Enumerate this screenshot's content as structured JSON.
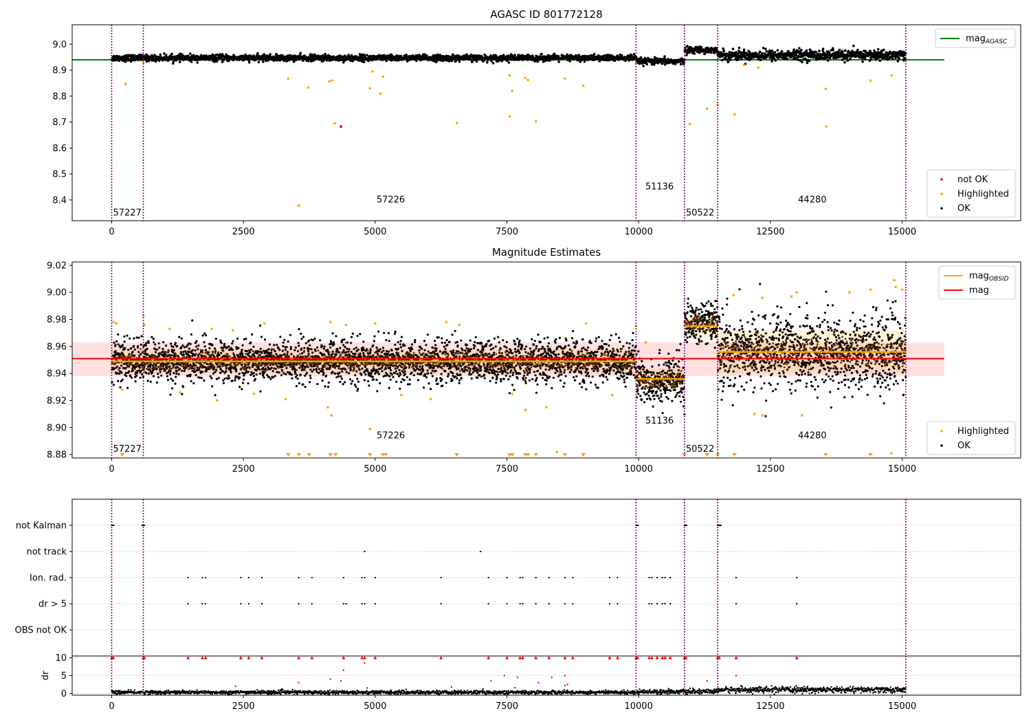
{
  "chart_data": [
    {
      "type": "scatter",
      "title": "AGASC ID 801772128",
      "xlim": [
        -750,
        17250
      ],
      "ylim": [
        8.32,
        9.075
      ],
      "xticks": [
        0,
        2500,
        5000,
        7500,
        10000,
        12500,
        15000
      ],
      "yticks": [
        8.4,
        8.5,
        8.6,
        8.7,
        8.8,
        8.9,
        9.0
      ],
      "ytick_labels": [
        "8.4",
        "8.5",
        "8.6",
        "8.7",
        "8.8",
        "8.9",
        "9.0"
      ],
      "obs_boundaries": [
        0,
        600,
        9950,
        10870,
        11500,
        15070
      ],
      "obsid_labels": [
        {
          "text": "57227",
          "x": 0,
          "y": 8.34
        },
        {
          "text": "57226",
          "x": 5000,
          "y": 8.39
        },
        {
          "text": "51136",
          "x": 10100,
          "y": 8.44
        },
        {
          "text": "50522",
          "x": 10870,
          "y": 8.34
        },
        {
          "text": "44280",
          "x": 13000,
          "y": 8.39
        }
      ],
      "mag_agasc": 8.94,
      "mag_agasc_xrange": [
        -750,
        15800
      ],
      "segments": [
        {
          "x0": 0,
          "x1": 9950,
          "center": 8.947,
          "spread": 0.006
        },
        {
          "x0": 9950,
          "x1": 10870,
          "center": 8.934,
          "spread": 0.006
        },
        {
          "x0": 10870,
          "x1": 11500,
          "center": 8.978,
          "spread": 0.006
        },
        {
          "x0": 11500,
          "x1": 15070,
          "center": 8.958,
          "spread": 0.01
        }
      ],
      "highlighted_points": [
        [
          260,
          8.847
        ],
        [
          3350,
          8.868
        ],
        [
          3730,
          8.833
        ],
        [
          4130,
          8.857
        ],
        [
          4180,
          8.86
        ],
        [
          4230,
          8.695
        ],
        [
          3550,
          8.378
        ],
        [
          4900,
          8.83
        ],
        [
          5100,
          8.81
        ],
        [
          5150,
          8.875
        ],
        [
          4950,
          8.895
        ],
        [
          6550,
          8.697
        ],
        [
          7550,
          8.88
        ],
        [
          7600,
          8.82
        ],
        [
          7550,
          8.722
        ],
        [
          7850,
          8.87
        ],
        [
          7900,
          8.862
        ],
        [
          8050,
          8.702
        ],
        [
          8600,
          8.868
        ],
        [
          8950,
          8.84
        ],
        [
          10970,
          8.693
        ],
        [
          11300,
          8.752
        ],
        [
          11500,
          8.767
        ],
        [
          11820,
          8.73
        ],
        [
          13550,
          8.828
        ],
        [
          13560,
          8.683
        ],
        [
          14400,
          8.86
        ],
        [
          14800,
          8.88
        ],
        [
          12270,
          8.91
        ],
        [
          12000,
          8.92
        ],
        [
          600,
          8.928
        ],
        [
          9950,
          8.925
        ]
      ],
      "not_ok_points": [
        [
          4350,
          8.683
        ]
      ],
      "legend_top": [
        {
          "label": "mag",
          "sub": "AGASC",
          "color": "#008000"
        }
      ],
      "legend_bottom": [
        {
          "label": "not OK",
          "color": "#ff0000"
        },
        {
          "label": "Highlighted",
          "color": "#ffa500"
        },
        {
          "label": "OK",
          "color": "#000000"
        }
      ]
    },
    {
      "type": "scatter",
      "title": "Magnitude Estimates",
      "xlim": [
        -750,
        17250
      ],
      "ylim": [
        8.8775,
        9.0225
      ],
      "xticks": [
        0,
        2500,
        5000,
        7500,
        10000,
        12500,
        15000
      ],
      "yticks": [
        8.88,
        8.9,
        8.92,
        8.94,
        8.96,
        8.98,
        9.0,
        9.02
      ],
      "ytick_labels": [
        "8.88",
        "8.90",
        "8.92",
        "8.94",
        "8.96",
        "8.98",
        "9.00",
        "9.02"
      ],
      "obs_boundaries": [
        0,
        600,
        9950,
        10870,
        11500,
        15070
      ],
      "obsid_labels": [
        {
          "text": "57227",
          "x": 0,
          "y": 8.882
        },
        {
          "text": "57226",
          "x": 5000,
          "y": 8.892
        },
        {
          "text": "51136",
          "x": 10100,
          "y": 8.903
        },
        {
          "text": "50522",
          "x": 10870,
          "y": 8.882
        },
        {
          "text": "44280",
          "x": 13000,
          "y": 8.892
        }
      ],
      "mag": 8.951,
      "mag_band": [
        8.938,
        8.963
      ],
      "mag_xrange": [
        -750,
        15800
      ],
      "mag_obsid": [
        {
          "x0": 0,
          "x1": 9950,
          "value": 8.949,
          "band": [
            8.94,
            8.958
          ]
        },
        {
          "x0": 9950,
          "x1": 10870,
          "value": 8.936,
          "band": [
            8.928,
            8.944
          ]
        },
        {
          "x0": 10870,
          "x1": 11500,
          "value": 8.975,
          "band": [
            8.966,
            8.984
          ]
        },
        {
          "x0": 11500,
          "x1": 15070,
          "value": 8.956,
          "band": [
            8.94,
            8.972
          ]
        }
      ],
      "segments": [
        {
          "x0": 0,
          "x1": 9950,
          "center": 8.949,
          "spread": 0.008
        },
        {
          "x0": 9950,
          "x1": 10870,
          "center": 8.935,
          "spread": 0.009
        },
        {
          "x0": 10870,
          "x1": 11500,
          "center": 8.977,
          "spread": 0.008
        },
        {
          "x0": 11500,
          "x1": 15070,
          "center": 8.956,
          "spread": 0.014
        }
      ],
      "highlighted_points": [
        [
          40,
          8.978
        ],
        [
          90,
          8.977
        ],
        [
          600,
          8.983
        ],
        [
          620,
          8.976
        ],
        [
          1100,
          8.973
        ],
        [
          1900,
          8.973
        ],
        [
          2300,
          8.972
        ],
        [
          2900,
          8.977
        ],
        [
          4150,
          8.978
        ],
        [
          4450,
          8.976
        ],
        [
          5000,
          8.977
        ],
        [
          6350,
          8.978
        ],
        [
          6600,
          8.976
        ],
        [
          9000,
          8.977
        ],
        [
          9950,
          8.975
        ],
        [
          10130,
          8.963
        ],
        [
          10870,
          8.995
        ],
        [
          11800,
          8.998
        ],
        [
          12350,
          8.996
        ],
        [
          12900,
          8.997
        ],
        [
          13000,
          9.0
        ],
        [
          14000,
          9.0
        ],
        [
          14400,
          9.002
        ],
        [
          14850,
          9.009
        ],
        [
          14880,
          9.004
        ],
        [
          15000,
          9.002
        ],
        [
          200,
          8.928
        ],
        [
          1300,
          8.926
        ],
        [
          2000,
          8.92
        ],
        [
          3300,
          8.921
        ],
        [
          4100,
          8.915
        ],
        [
          4170,
          8.909
        ],
        [
          4900,
          8.899
        ],
        [
          6050,
          8.921
        ],
        [
          7850,
          8.913
        ],
        [
          8250,
          8.915
        ],
        [
          8450,
          8.882
        ],
        [
          12200,
          8.91
        ],
        [
          12350,
          8.909
        ],
        [
          13100,
          8.909
        ],
        [
          14800,
          8.881
        ],
        [
          2700,
          8.925
        ],
        [
          5500,
          8.924
        ],
        [
          7600,
          8.925
        ],
        [
          9500,
          8.924
        ]
      ],
      "lower_limit_x": [
        200,
        3350,
        3550,
        3750,
        4150,
        4250,
        4900,
        5150,
        5200,
        6550,
        7550,
        7600,
        7850,
        7900,
        8050,
        8600,
        8950,
        10870,
        11300,
        11500,
        11820,
        13550,
        14400
      ],
      "legend_top": [
        {
          "label": "mag",
          "sub": "OBSID",
          "color": "#ffa500"
        },
        {
          "label": "mag",
          "sub": "",
          "color": "#ff0000"
        }
      ],
      "legend_bottom": [
        {
          "label": "Highlighted",
          "color": "#ffa500"
        },
        {
          "label": "OK",
          "color": "#000000"
        }
      ]
    },
    {
      "type": "scatter",
      "title": "",
      "xlim": [
        -750,
        17250
      ],
      "xticks": [
        0,
        2500,
        5000,
        7500,
        10000,
        12500,
        15000
      ],
      "obs_boundaries": [
        0,
        600,
        9950,
        10870,
        11500,
        15070
      ],
      "flag_rows": [
        "not Kalman",
        "not track",
        "Ion. rad.",
        "dr > 5",
        "OBS not OK"
      ],
      "flag_points": {
        "not Kalman": [
          0,
          20,
          40,
          580,
          600,
          620,
          9950,
          9970,
          9990,
          10870,
          10890,
          10910,
          11500,
          11520,
          11540,
          11560
        ],
        "not track": [
          4800,
          7000
        ],
        "Ion. rad.": [
          1450,
          1720,
          1780,
          2450,
          2600,
          2850,
          3550,
          3800,
          4400,
          4750,
          4800,
          5000,
          6250,
          7150,
          7500,
          7750,
          7800,
          8050,
          8300,
          8600,
          8750,
          9450,
          9600,
          10200,
          10250,
          10350,
          10450,
          10500,
          10600,
          11850,
          13000
        ],
        "dr > 5": [
          1450,
          1720,
          1780,
          2450,
          2600,
          2850,
          3550,
          3800,
          4400,
          4450,
          4750,
          4800,
          5000,
          6250,
          7150,
          7500,
          7750,
          7800,
          8050,
          8300,
          8600,
          8750,
          9450,
          9600,
          10200,
          10250,
          10350,
          10450,
          10500,
          10600,
          11850,
          13000
        ],
        "OBS not OK": []
      },
      "dr_yticks": [
        0,
        5,
        10
      ],
      "dr_ylim": [
        -0.5,
        10.5
      ],
      "dr_ylabel": "dr",
      "dr_red_clipped_x": [
        0,
        30,
        600,
        620,
        1450,
        1720,
        1780,
        2450,
        2600,
        2850,
        3550,
        3800,
        4400,
        4750,
        4800,
        5000,
        6250,
        7150,
        7500,
        7750,
        7800,
        8050,
        8300,
        8600,
        8750,
        9450,
        9600,
        9950,
        9980,
        10200,
        10250,
        10350,
        10450,
        10500,
        10600,
        10870,
        10900,
        11500,
        11530,
        11850,
        13000
      ],
      "dr_red_points": [
        [
          3550,
          3.0
        ],
        [
          4150,
          4.0
        ],
        [
          4350,
          3.5
        ],
        [
          4400,
          6.5
        ],
        [
          4800,
          8.5
        ],
        [
          7200,
          3.5
        ],
        [
          7450,
          5.0
        ],
        [
          7700,
          4.5
        ],
        [
          8100,
          3.0
        ],
        [
          8350,
          4.5
        ],
        [
          8600,
          5.0
        ],
        [
          8650,
          2.5
        ],
        [
          11300,
          3.5
        ],
        [
          11850,
          5.0
        ]
      ],
      "dr_segments": [
        {
          "x0": 0,
          "x1": 9950,
          "center": 0.3,
          "spread": 0.25
        },
        {
          "x0": 9950,
          "x1": 11500,
          "center": 0.5,
          "spread": 0.3
        },
        {
          "x0": 11500,
          "x1": 15070,
          "center": 1.0,
          "spread": 0.4
        }
      ],
      "dr_black_points": [
        [
          600,
          1.0
        ],
        [
          2350,
          2.0
        ],
        [
          4850,
          1.5
        ],
        [
          6450,
          1.8
        ],
        [
          7050,
          1.3
        ],
        [
          7650,
          1.6
        ],
        [
          8600,
          2.2
        ]
      ]
    }
  ]
}
